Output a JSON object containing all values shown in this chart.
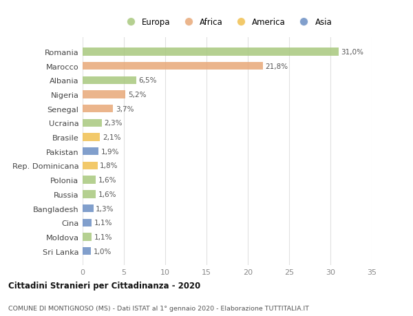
{
  "countries": [
    "Romania",
    "Marocco",
    "Albania",
    "Nigeria",
    "Senegal",
    "Ucraina",
    "Brasile",
    "Pakistan",
    "Rep. Dominicana",
    "Polonia",
    "Russia",
    "Bangladesh",
    "Cina",
    "Moldova",
    "Sri Lanka"
  ],
  "values": [
    31.0,
    21.8,
    6.5,
    5.2,
    3.7,
    2.3,
    2.1,
    1.9,
    1.8,
    1.6,
    1.6,
    1.3,
    1.1,
    1.1,
    1.0
  ],
  "labels": [
    "31,0%",
    "21,8%",
    "6,5%",
    "5,2%",
    "3,7%",
    "2,3%",
    "2,1%",
    "1,9%",
    "1,8%",
    "1,6%",
    "1,6%",
    "1,3%",
    "1,1%",
    "1,1%",
    "1,0%"
  ],
  "continents": [
    "Europa",
    "Africa",
    "Europa",
    "Africa",
    "Africa",
    "Europa",
    "America",
    "Asia",
    "America",
    "Europa",
    "Europa",
    "Asia",
    "Asia",
    "Europa",
    "Asia"
  ],
  "colors": {
    "Europa": "#a8c87e",
    "Africa": "#e8a878",
    "America": "#f0c050",
    "Asia": "#6b8ec4"
  },
  "legend_order": [
    "Europa",
    "Africa",
    "America",
    "Asia"
  ],
  "xlim": [
    0,
    35
  ],
  "xticks": [
    0,
    5,
    10,
    15,
    20,
    25,
    30,
    35
  ],
  "title": "Cittadini Stranieri per Cittadinanza - 2020",
  "subtitle": "COMUNE DI MONTIGNOSO (MS) - Dati ISTAT al 1° gennaio 2020 - Elaborazione TUTTITALIA.IT",
  "bg_color": "#ffffff",
  "grid_color": "#e0e0e0"
}
